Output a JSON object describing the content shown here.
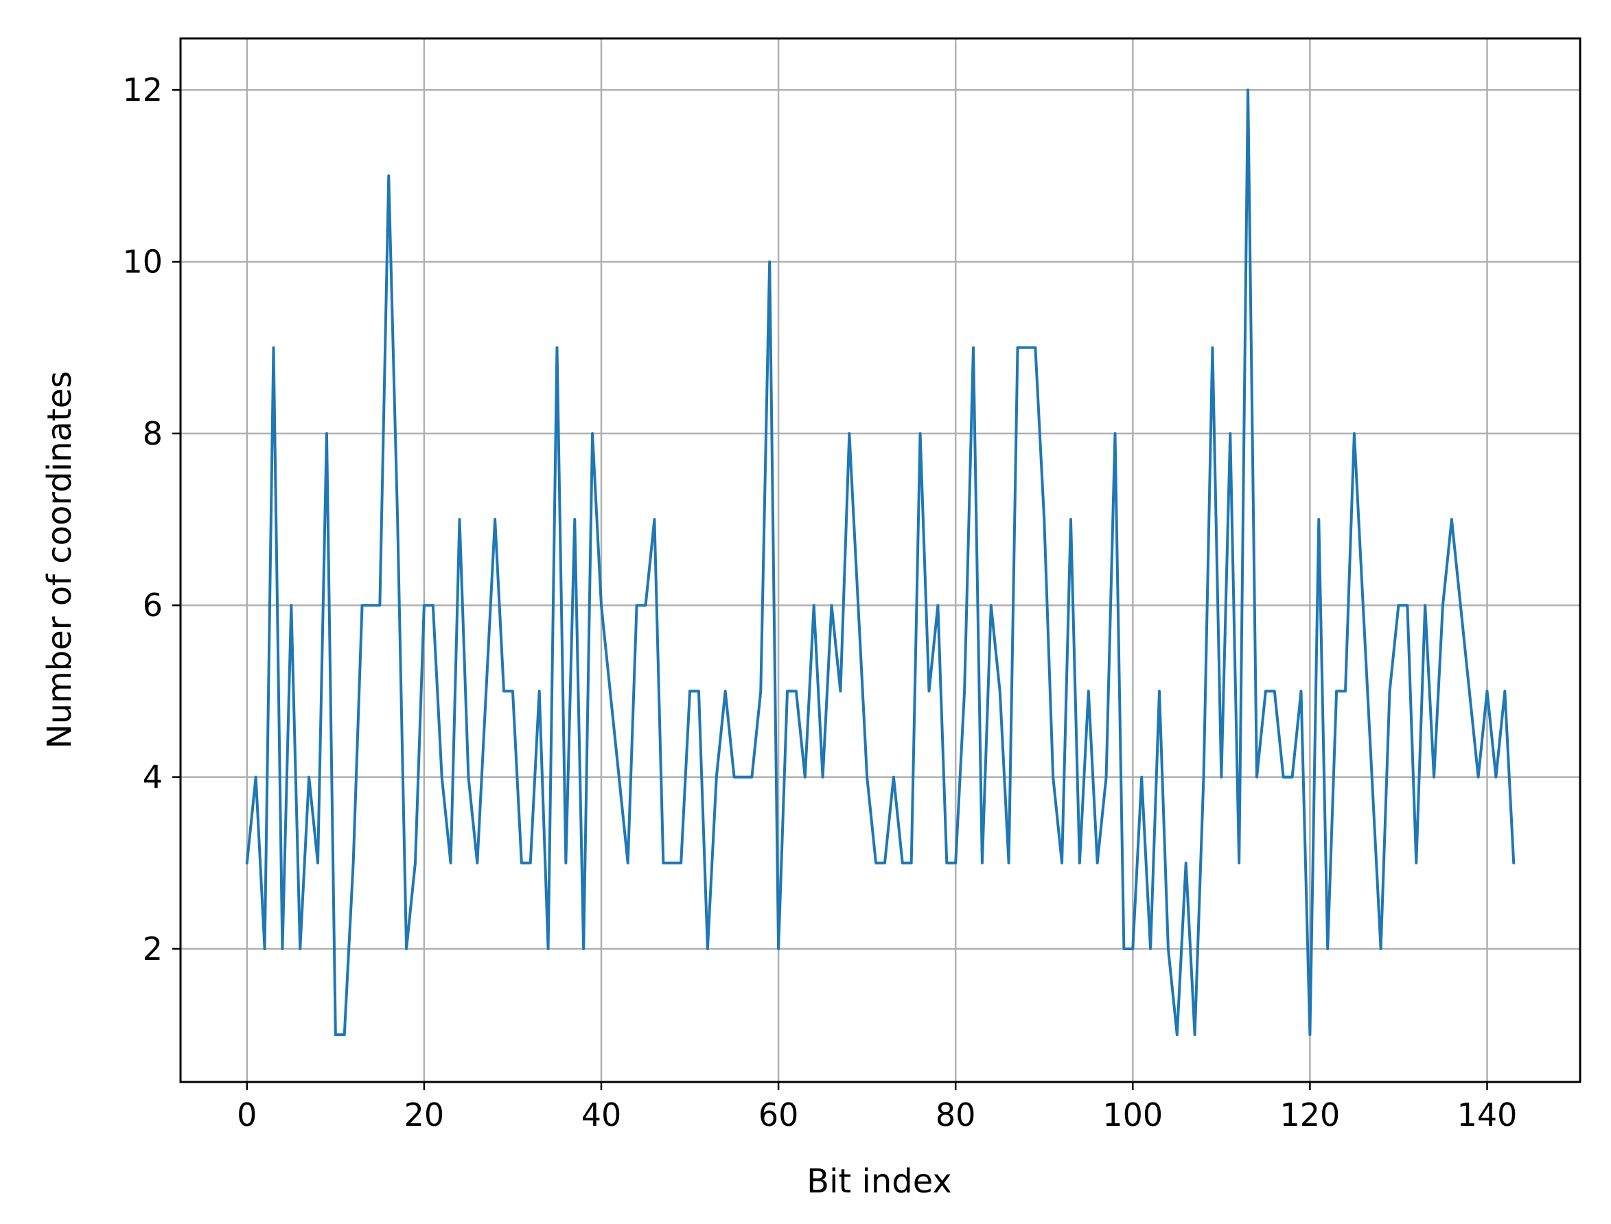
{
  "chart_data": {
    "type": "line",
    "title": "",
    "xlabel": "Bit index",
    "ylabel": "Number of coordinates",
    "xlim": [
      -7.5,
      150.5
    ],
    "ylim": [
      0.45,
      12.6
    ],
    "xticks": [
      0,
      20,
      40,
      60,
      80,
      100,
      120,
      140
    ],
    "yticks": [
      2,
      4,
      6,
      8,
      10,
      12
    ],
    "grid": true,
    "legend": "none",
    "series_color": "#1f77b4",
    "x": [
      0,
      1,
      2,
      3,
      4,
      5,
      6,
      7,
      8,
      9,
      10,
      11,
      12,
      13,
      14,
      15,
      16,
      17,
      18,
      19,
      20,
      21,
      22,
      23,
      24,
      25,
      26,
      27,
      28,
      29,
      30,
      31,
      32,
      33,
      34,
      35,
      36,
      37,
      38,
      39,
      40,
      41,
      42,
      43,
      44,
      45,
      46,
      47,
      48,
      49,
      50,
      51,
      52,
      53,
      54,
      55,
      56,
      57,
      58,
      59,
      60,
      61,
      62,
      63,
      64,
      65,
      66,
      67,
      68,
      69,
      70,
      71,
      72,
      73,
      74,
      75,
      76,
      77,
      78,
      79,
      80,
      81,
      82,
      83,
      84,
      85,
      86,
      87,
      88,
      89,
      90,
      91,
      92,
      93,
      94,
      95,
      96,
      97,
      98,
      99,
      100,
      101,
      102,
      103,
      104,
      105,
      106,
      107,
      108,
      109,
      110,
      111,
      112,
      113,
      114,
      115,
      116,
      117,
      118,
      119,
      120,
      121,
      122,
      123,
      124,
      125,
      126,
      127,
      128,
      129,
      130,
      131,
      132,
      133,
      134,
      135,
      136,
      137,
      138,
      139,
      140,
      141,
      142,
      143
    ],
    "series": [
      {
        "values": [
          3,
          4,
          2,
          9,
          2,
          6,
          2,
          4,
          3,
          8,
          1,
          1,
          3,
          6,
          6,
          6,
          11,
          7,
          2,
          3,
          6,
          6,
          4,
          3,
          7,
          4,
          3,
          5,
          7,
          5,
          5,
          3,
          3,
          5,
          2,
          9,
          3,
          7,
          2,
          8,
          6,
          5,
          4,
          3,
          6,
          6,
          7,
          3,
          3,
          3,
          5,
          5,
          2,
          4,
          5,
          4,
          4,
          4,
          5,
          10,
          2,
          5,
          5,
          4,
          6,
          4,
          6,
          5,
          8,
          6,
          4,
          3,
          3,
          4,
          3,
          3,
          8,
          5,
          6,
          3,
          3,
          5,
          9,
          3,
          6,
          5,
          3,
          9,
          9,
          9,
          7,
          4,
          3,
          7,
          3,
          5,
          3,
          4,
          8,
          2,
          2,
          4,
          2,
          5,
          2,
          1,
          3,
          1,
          4,
          9,
          4,
          8,
          3,
          12,
          4,
          5,
          5,
          4,
          4,
          5,
          1,
          7,
          2,
          5,
          5,
          8,
          6,
          4,
          2,
          5,
          6,
          6,
          3,
          6,
          4,
          6,
          7,
          6,
          5,
          4,
          5,
          4,
          5,
          3
        ]
      }
    ]
  }
}
